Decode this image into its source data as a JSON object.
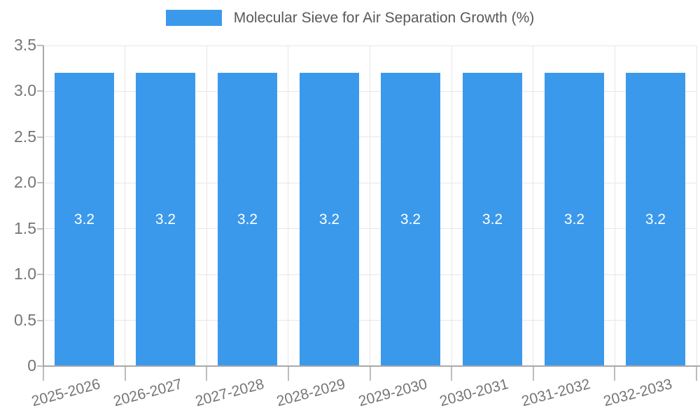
{
  "chart_data": {
    "type": "bar",
    "title": "Molecular Sieve for Air Separation Growth (%)",
    "legend": {
      "label": "Molecular Sieve for Air Separation Growth (%)",
      "position": "top-center"
    },
    "categories": [
      "2025-2026",
      "2026-2027",
      "2027-2028",
      "2028-2029",
      "2029-2030",
      "2030-2031",
      "2031-2032",
      "2032-2033"
    ],
    "series": [
      {
        "name": "Molecular Sieve for Air Separation Growth (%)",
        "values": [
          3.2,
          3.2,
          3.2,
          3.2,
          3.2,
          3.2,
          3.2,
          3.2
        ]
      }
    ],
    "bar_value_labels": [
      "3.2",
      "3.2",
      "3.2",
      "3.2",
      "3.2",
      "3.2",
      "3.2",
      "3.2"
    ],
    "xlabel": "",
    "ylabel": "",
    "ylim": [
      0,
      3.5
    ],
    "ytick_labels": [
      "0",
      "0.5",
      "1.0",
      "1.5",
      "2.0",
      "2.5",
      "3.0",
      "3.5"
    ],
    "ytick_values": [
      0,
      0.5,
      1.0,
      1.5,
      2.0,
      2.5,
      3.0,
      3.5
    ],
    "grid": true,
    "xtick_rotation_deg": -15,
    "colors": {
      "bar": "#3B99EC",
      "bar_label": "#FFFFFF",
      "axis_line": "#A9A9A9",
      "gridline": "#E7E7E7",
      "tick_mark": "#BDBDBD",
      "tick_label": "#757575",
      "legend_text": "#58595B",
      "background": "#FFFFFF"
    }
  }
}
